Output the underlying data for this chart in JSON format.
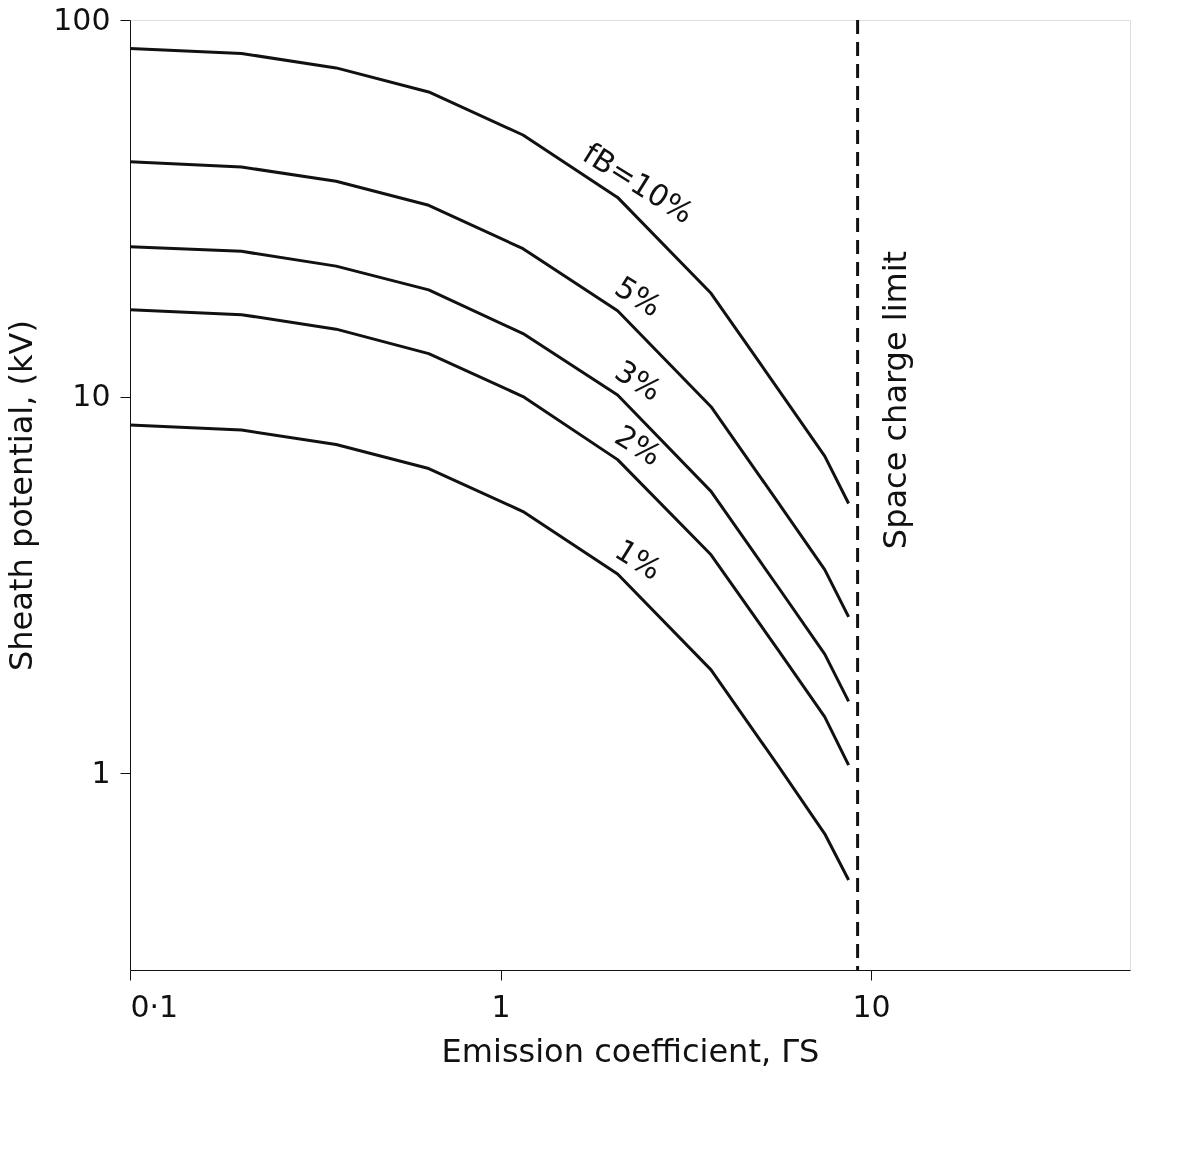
{
  "chart_data": {
    "type": "line",
    "xlabel": "Emission coefficient, ΓS",
    "ylabel": "Sheath potential, (kV)",
    "log": "xy",
    "grid": false,
    "legend": false,
    "marker": "none",
    "line_style": "solid",
    "xlim": [
      0.1,
      50
    ],
    "xticks": [
      {
        "value": 0.1,
        "label": "0·1"
      },
      1,
      10
    ],
    "ylim": [
      0.3,
      100
    ],
    "yticks": [
      1,
      10,
      100
    ],
    "x": [
      0.1,
      0.2,
      0.36,
      0.64,
      1.15,
      2.07,
      3.7,
      5.6,
      7.5,
      8.7
    ],
    "series": [
      {
        "name": "fB=10%",
        "color": "#111111",
        "values": [
          84,
          81.5,
          74.6,
          64.4,
          49.5,
          33.8,
          18.8,
          10.5,
          6.95,
          5.2
        ]
      },
      {
        "name": "5%",
        "color": "#111111",
        "values": [
          42,
          40.7,
          37.3,
          32.2,
          24.7,
          16.9,
          9.4,
          5.25,
          3.47,
          2.6
        ]
      },
      {
        "name": "3%",
        "color": "#111111",
        "values": [
          25,
          24.3,
          22.2,
          19.2,
          14.7,
          10.1,
          5.6,
          3.13,
          2.07,
          1.55
        ]
      },
      {
        "name": "2%",
        "color": "#111111",
        "values": [
          17,
          16.5,
          15.1,
          13.0,
          10.0,
          6.8,
          3.8,
          2.13,
          1.41,
          1.05
        ]
      },
      {
        "name": "1%",
        "color": "#111111",
        "values": [
          8.4,
          8.15,
          7.46,
          6.44,
          4.95,
          3.38,
          1.88,
          1.05,
          0.69,
          0.52
        ]
      }
    ],
    "ref_lines": [
      {
        "axis": "x",
        "value": 9.2,
        "label": "Space charge limit",
        "line_style": "dashed",
        "color": "#111111"
      }
    ]
  }
}
